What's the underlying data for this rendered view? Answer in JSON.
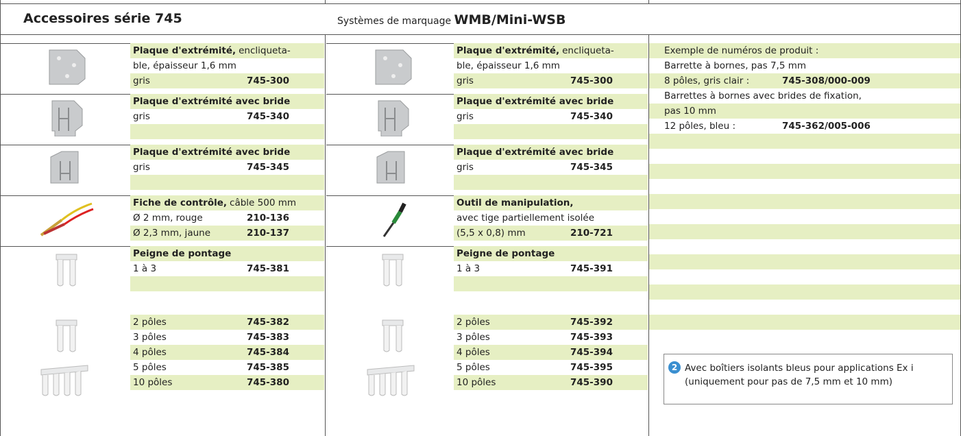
{
  "header": {
    "title": "Accessoires série 745",
    "subtitle_prefix": "Systèmes de marquage",
    "subtitle": "WMB/Mini-WSB"
  },
  "columns": [
    {
      "blocks": [
        {
          "rows": [
            {
              "b": "Plaque d'extrémité,",
              "t": "encliqueta-"
            },
            {
              "t": "ble, épaisseur 1,6 mm"
            },
            {
              "t": "gris",
              "code": "745-300"
            }
          ]
        },
        {
          "rows": [
            {
              "b": "Plaque d'extrémité avec bride"
            },
            {
              "t": "gris",
              "code": "745-340"
            }
          ]
        },
        {
          "rows": [
            {
              "b": "Plaque d'extrémité avec bride"
            },
            {
              "t": "gris",
              "code": "745-345"
            }
          ]
        },
        {
          "rows": [
            {
              "b": "Fiche de contrôle,",
              "t": "câble 500 mm"
            },
            {
              "t": "Ø 2 mm, rouge",
              "code": "210-136"
            },
            {
              "t": "Ø 2,3 mm, jaune",
              "code": "210-137"
            }
          ]
        },
        {
          "rows": [
            {
              "b": "Peigne de pontage"
            },
            {
              "t": "1 à 3",
              "code": "745-381"
            }
          ]
        },
        {
          "rows": [
            {
              "t": "2 pôles",
              "code": "745-382"
            },
            {
              "t": "3 pôles",
              "code": "745-383"
            },
            {
              "t": "4 pôles",
              "code": "745-384"
            },
            {
              "t": "5 pôles",
              "code": "745-385"
            },
            {
              "t": "10 pôles",
              "code": "745-380"
            }
          ]
        }
      ]
    },
    {
      "blocks": [
        {
          "rows": [
            {
              "b": "Plaque d'extrémité,",
              "t": "encliqueta-"
            },
            {
              "t": "ble, épaisseur 1,6 mm"
            },
            {
              "t": "gris",
              "code": "745-300"
            }
          ]
        },
        {
          "rows": [
            {
              "b": "Plaque d'extrémité avec bride"
            },
            {
              "t": "gris",
              "code": "745-340"
            }
          ]
        },
        {
          "rows": [
            {
              "b": "Plaque d'extrémité avec bride"
            },
            {
              "t": "gris",
              "code": "745-345"
            }
          ]
        },
        {
          "rows": [
            {
              "b": "Outil de manipulation,"
            },
            {
              "t": "avec tige partiellement isolée"
            },
            {
              "t": "(5,5 x 0,8) mm",
              "code": "210-721"
            }
          ]
        },
        {
          "rows": [
            {
              "b": "Peigne de pontage"
            },
            {
              "t": "1 à 3",
              "code": "745-391"
            }
          ]
        },
        {
          "rows": [
            {
              "t": "2 pôles",
              "code": "745-392"
            },
            {
              "t": "3 pôles",
              "code": "745-393"
            },
            {
              "t": "4 pôles",
              "code": "745-394"
            },
            {
              "t": "5 pôles",
              "code": "745-395"
            },
            {
              "t": "10 pôles",
              "code": "745-390"
            }
          ]
        }
      ]
    }
  ],
  "examples": {
    "rows": [
      {
        "t": "Exemple de numéros de produit :"
      },
      {
        "t": "Barrette à bornes, pas 7,5 mm"
      },
      {
        "t": "8 pôles, gris clair :",
        "code": "745-308/000-009"
      },
      {
        "t": "Barrettes à bornes avec brides de fixation,"
      },
      {
        "t": "pas 10 mm"
      },
      {
        "t": "12 pôles, bleu :",
        "code": "745-362/005-006"
      }
    ]
  },
  "note": {
    "marker": "2",
    "lines": [
      "Avec boîtiers isolants bleus pour applications Ex i",
      "(uniquement pour pas de 7,5 mm et 10 mm)"
    ]
  }
}
